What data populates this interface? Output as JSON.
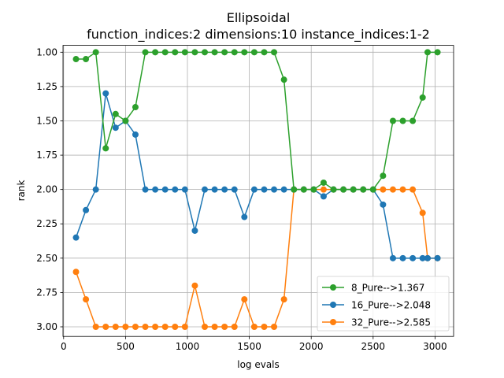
{
  "chart_data": {
    "type": "line",
    "title": "Ellipsoidal",
    "subtitle": "function_indices:2 dimensions:10 instance_indices:1-2",
    "xlabel": "log evals",
    "ylabel": "rank",
    "xlim": [
      -5,
      3150
    ],
    "ylim": [
      3.07,
      0.95
    ],
    "y_inverted": true,
    "grid": true,
    "legend_position": "lower-right",
    "xticks": [
      0,
      500,
      1000,
      1500,
      2000,
      2500,
      3000
    ],
    "yticks": [
      1.0,
      1.25,
      1.5,
      1.75,
      2.0,
      2.25,
      2.5,
      2.75,
      3.0
    ],
    "xtick_labels": [
      "0",
      "500",
      "1000",
      "1500",
      "2000",
      "2500",
      "3000"
    ],
    "ytick_labels": [
      "1.00",
      "1.25",
      "1.50",
      "1.75",
      "2.00",
      "2.25",
      "2.50",
      "2.75",
      "3.00"
    ],
    "x": [
      100,
      180,
      260,
      340,
      420,
      500,
      580,
      660,
      740,
      820,
      900,
      980,
      1060,
      1140,
      1220,
      1300,
      1380,
      1460,
      1540,
      1620,
      1700,
      1780,
      1860,
      1940,
      2020,
      2100,
      2180,
      2260,
      2340,
      2420,
      2500,
      2580,
      2660,
      2740,
      2820,
      2900,
      2980,
      3000
    ],
    "series": [
      {
        "name": "8_Pure-->1.367",
        "color": "#2ca02c",
        "x": [
          100,
          180,
          260,
          340,
          420,
          500,
          580,
          660,
          740,
          820,
          900,
          980,
          1060,
          1140,
          1220,
          1300,
          1380,
          1460,
          1540,
          1620,
          1700,
          1780,
          1860,
          1940,
          2020,
          2100,
          2180,
          2260,
          2340,
          2420,
          2500,
          2580,
          2660,
          2740,
          2820,
          2900,
          2940,
          3020
        ],
        "values": [
          1.05,
          1.05,
          1.0,
          1.7,
          1.45,
          1.5,
          1.4,
          1.0,
          1.0,
          1.0,
          1.0,
          1.0,
          1.0,
          1.0,
          1.0,
          1.0,
          1.0,
          1.0,
          1.0,
          1.0,
          1.0,
          1.2,
          2.0,
          2.0,
          2.0,
          1.95,
          2.0,
          2.0,
          2.0,
          2.0,
          2.0,
          1.9,
          1.5,
          1.5,
          1.5,
          1.33,
          1.0,
          1.0
        ]
      },
      {
        "name": "16_Pure-->2.048",
        "color": "#1f77b4",
        "x": [
          100,
          180,
          260,
          340,
          420,
          500,
          580,
          660,
          740,
          820,
          900,
          980,
          1060,
          1140,
          1220,
          1300,
          1380,
          1460,
          1540,
          1620,
          1700,
          1780,
          1860,
          1940,
          2020,
          2100,
          2180,
          2260,
          2340,
          2420,
          2500,
          2580,
          2660,
          2740,
          2820,
          2900,
          2940,
          3020
        ],
        "values": [
          2.35,
          2.15,
          2.0,
          1.3,
          1.55,
          1.5,
          1.6,
          2.0,
          2.0,
          2.0,
          2.0,
          2.0,
          2.3,
          2.0,
          2.0,
          2.0,
          2.0,
          2.2,
          2.0,
          2.0,
          2.0,
          2.0,
          2.0,
          2.0,
          2.0,
          2.05,
          2.0,
          2.0,
          2.0,
          2.0,
          2.0,
          2.11,
          2.5,
          2.5,
          2.5,
          2.5,
          2.5,
          2.5
        ]
      },
      {
        "name": "32_Pure-->2.585",
        "color": "#ff7f0e",
        "x": [
          100,
          180,
          260,
          340,
          420,
          500,
          580,
          660,
          740,
          820,
          900,
          980,
          1060,
          1140,
          1220,
          1300,
          1380,
          1460,
          1540,
          1620,
          1700,
          1780,
          1860,
          1940,
          2020,
          2100,
          2180,
          2260,
          2340,
          2420,
          2500,
          2580,
          2660,
          2740,
          2820,
          2900,
          2940,
          3020
        ],
        "values": [
          2.6,
          2.8,
          3.0,
          3.0,
          3.0,
          3.0,
          3.0,
          3.0,
          3.0,
          3.0,
          3.0,
          3.0,
          2.7,
          3.0,
          3.0,
          3.0,
          3.0,
          2.8,
          3.0,
          3.0,
          3.0,
          2.8,
          2.0,
          2.0,
          2.0,
          2.0,
          2.0,
          2.0,
          2.0,
          2.0,
          2.0,
          2.0,
          2.0,
          2.0,
          2.0,
          2.17,
          2.5,
          2.5
        ]
      }
    ]
  }
}
